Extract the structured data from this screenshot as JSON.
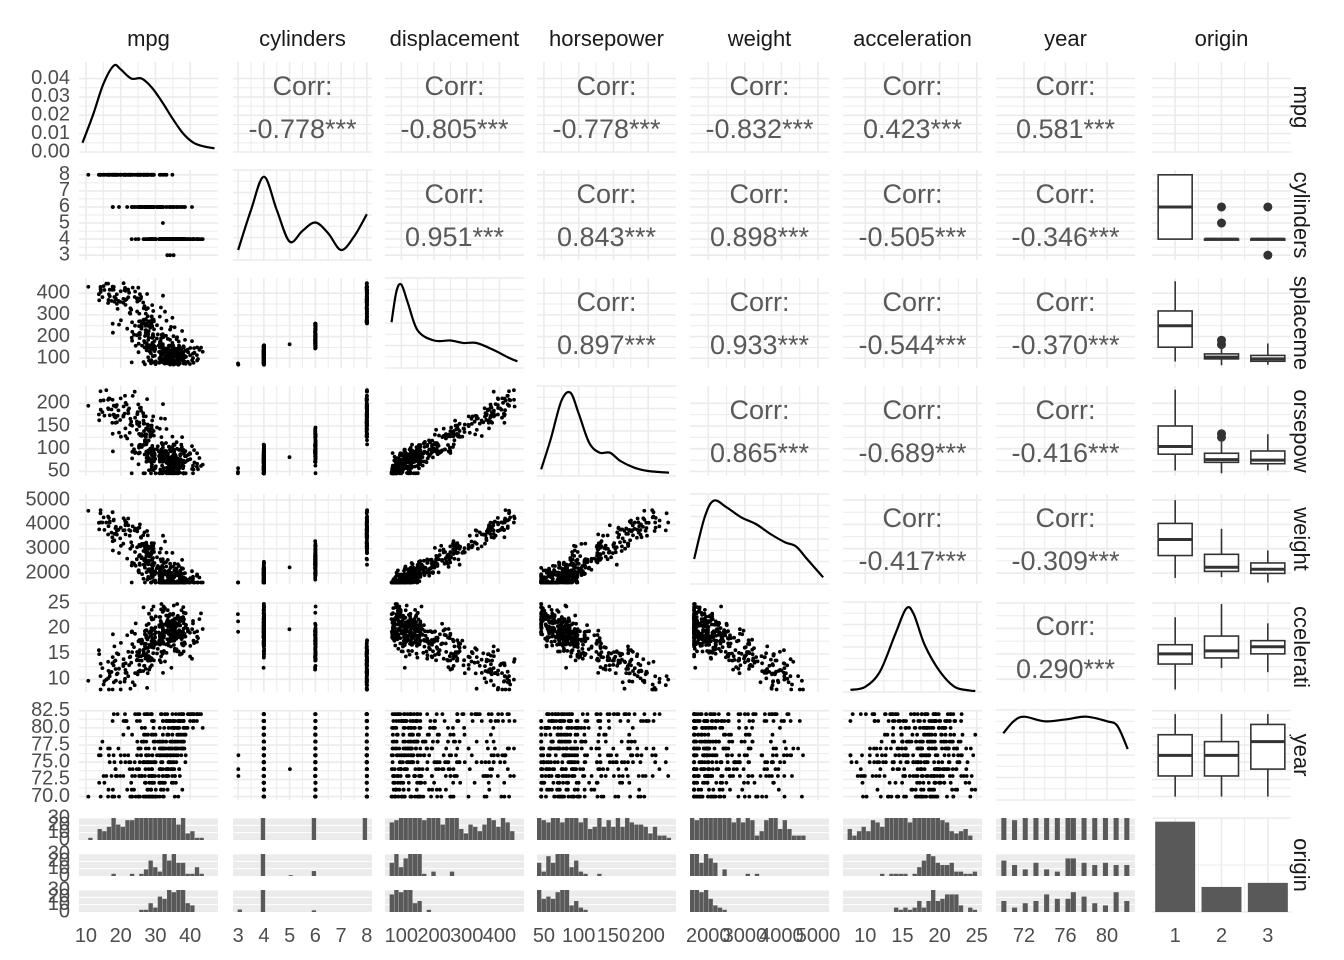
{
  "chart_data": {
    "type": "scatter-matrix",
    "variables": [
      "mpg",
      "cylinders",
      "displacement",
      "horsepower",
      "weight",
      "acceleration",
      "year",
      "origin"
    ],
    "row_strip_labels": [
      "mpg",
      "cylinders",
      "splaceme",
      "orsepow",
      "weight",
      "ccelerati",
      "year",
      "origin"
    ],
    "corr_label": "Corr:",
    "correlations": [
      {
        "row": 0,
        "col": 1,
        "value": "-0.778***"
      },
      {
        "row": 0,
        "col": 2,
        "value": "-0.805***"
      },
      {
        "row": 0,
        "col": 3,
        "value": "-0.778***"
      },
      {
        "row": 0,
        "col": 4,
        "value": "-0.832***"
      },
      {
        "row": 0,
        "col": 5,
        "value": "0.423***"
      },
      {
        "row": 0,
        "col": 6,
        "value": "0.581***"
      },
      {
        "row": 1,
        "col": 2,
        "value": "0.951***"
      },
      {
        "row": 1,
        "col": 3,
        "value": "0.843***"
      },
      {
        "row": 1,
        "col": 4,
        "value": "0.898***"
      },
      {
        "row": 1,
        "col": 5,
        "value": "-0.505***"
      },
      {
        "row": 1,
        "col": 6,
        "value": "-0.346***"
      },
      {
        "row": 2,
        "col": 3,
        "value": "0.897***"
      },
      {
        "row": 2,
        "col": 4,
        "value": "0.933***"
      },
      {
        "row": 2,
        "col": 5,
        "value": "-0.544***"
      },
      {
        "row": 2,
        "col": 6,
        "value": "-0.370***"
      },
      {
        "row": 3,
        "col": 4,
        "value": "0.865***"
      },
      {
        "row": 3,
        "col": 5,
        "value": "-0.689***"
      },
      {
        "row": 3,
        "col": 6,
        "value": "-0.416***"
      },
      {
        "row": 4,
        "col": 5,
        "value": "-0.417***"
      },
      {
        "row": 4,
        "col": 6,
        "value": "-0.309***"
      },
      {
        "row": 5,
        "col": 6,
        "value": "0.290***"
      }
    ],
    "x_axes": [
      {
        "var": "mpg",
        "range": [
          8,
          48
        ],
        "ticks": [
          "10",
          "20",
          "30",
          "40"
        ],
        "tick_values": [
          10,
          20,
          30,
          40
        ]
      },
      {
        "var": "cylinders",
        "range": [
          2.8,
          8.2
        ],
        "ticks": [
          "3",
          "4",
          "5",
          "6",
          "7",
          "8"
        ],
        "tick_values": [
          3,
          4,
          5,
          6,
          7,
          8
        ]
      },
      {
        "var": "displacement",
        "range": [
          50,
          475
        ],
        "ticks": [
          "100",
          "200",
          "300",
          "400"
        ],
        "tick_values": [
          100,
          200,
          300,
          400
        ]
      },
      {
        "var": "horsepower",
        "range": [
          40,
          240
        ],
        "ticks": [
          "50",
          "100",
          "150",
          "200"
        ],
        "tick_values": [
          50,
          100,
          150,
          200
        ]
      },
      {
        "var": "weight",
        "range": [
          1500,
          5300
        ],
        "ticks": [
          "2000",
          "3000",
          "4000",
          "5000"
        ],
        "tick_values": [
          2000,
          3000,
          4000,
          5000
        ]
      },
      {
        "var": "acceleration",
        "range": [
          7,
          25.7
        ],
        "ticks": [
          "10",
          "15",
          "20",
          "25"
        ],
        "tick_values": [
          10,
          15,
          20,
          25
        ]
      },
      {
        "var": "year",
        "range": [
          69.3,
          82.7
        ],
        "ticks": [
          "72",
          "76",
          "80"
        ],
        "tick_values": [
          72,
          76,
          80
        ]
      },
      {
        "var": "origin",
        "range": [
          0.5,
          3.5
        ],
        "ticks": [
          "1",
          "2",
          "3"
        ],
        "tick_values": [
          1,
          2,
          3
        ]
      }
    ],
    "y_axes": [
      {
        "var": "mpg",
        "range": [
          0,
          0.049
        ],
        "ticks": [
          "0.00",
          "0.01",
          "0.02",
          "0.03",
          "0.04"
        ],
        "tick_values": [
          0,
          0.01,
          0.02,
          0.03,
          0.04
        ]
      },
      {
        "var": "cylinders",
        "range": [
          2.7,
          8.3
        ],
        "ticks": [
          "3",
          "4",
          "5",
          "6",
          "7",
          "8"
        ],
        "tick_values": [
          3,
          4,
          5,
          6,
          7,
          8
        ]
      },
      {
        "var": "displacement",
        "range": [
          55,
          470
        ],
        "ticks": [
          "100",
          "200",
          "300",
          "400"
        ],
        "tick_values": [
          100,
          200,
          300,
          400
        ]
      },
      {
        "var": "horsepower",
        "range": [
          40,
          238
        ],
        "ticks": [
          "50",
          "100",
          "150",
          "200"
        ],
        "tick_values": [
          50,
          100,
          150,
          200
        ]
      },
      {
        "var": "weight",
        "range": [
          1550,
          5250
        ],
        "ticks": [
          "2000",
          "3000",
          "4000",
          "5000"
        ],
        "tick_values": [
          2000,
          3000,
          4000,
          5000
        ]
      },
      {
        "var": "acceleration",
        "range": [
          7.5,
          25.2
        ],
        "ticks": [
          "10",
          "15",
          "20",
          "25"
        ],
        "tick_values": [
          10,
          15,
          20,
          25
        ]
      },
      {
        "var": "year",
        "range": [
          69.5,
          82.6
        ],
        "ticks": [
          "70.0",
          "72.5",
          "75.0",
          "77.5",
          "80.0",
          "82.5"
        ],
        "tick_values": [
          70,
          72.5,
          75,
          77.5,
          80,
          82.5
        ]
      },
      {
        "var": "origin",
        "ticks": [
          "0",
          "10",
          "20",
          "30"
        ]
      }
    ],
    "diagonal_densities": [
      {
        "var": "mpg",
        "points": [
          [
            9,
            0.005
          ],
          [
            12,
            0.02
          ],
          [
            15,
            0.037
          ],
          [
            18,
            0.047
          ],
          [
            20,
            0.045
          ],
          [
            23,
            0.04
          ],
          [
            26,
            0.04
          ],
          [
            29,
            0.035
          ],
          [
            32,
            0.027
          ],
          [
            35,
            0.018
          ],
          [
            38,
            0.01
          ],
          [
            41,
            0.005
          ],
          [
            44,
            0.003
          ],
          [
            47,
            0.002
          ]
        ]
      },
      {
        "var": "cylinders",
        "points": [
          [
            3,
            0.12
          ],
          [
            3.5,
            0.6
          ],
          [
            4,
            1.0
          ],
          [
            4.5,
            0.6
          ],
          [
            5,
            0.22
          ],
          [
            5.5,
            0.35
          ],
          [
            6,
            0.45
          ],
          [
            6.5,
            0.32
          ],
          [
            7,
            0.12
          ],
          [
            7.5,
            0.28
          ],
          [
            8,
            0.55
          ]
        ]
      },
      {
        "var": "displacement",
        "points": [
          [
            70,
            0.55
          ],
          [
            85,
            0.92
          ],
          [
            100,
            1.0
          ],
          [
            120,
            0.78
          ],
          [
            150,
            0.45
          ],
          [
            200,
            0.33
          ],
          [
            250,
            0.33
          ],
          [
            290,
            0.3
          ],
          [
            330,
            0.3
          ],
          [
            380,
            0.22
          ],
          [
            430,
            0.12
          ],
          [
            455,
            0.08
          ]
        ]
      },
      {
        "var": "horsepower",
        "points": [
          [
            46,
            0.08
          ],
          [
            60,
            0.45
          ],
          [
            75,
            0.9
          ],
          [
            88,
            1.0
          ],
          [
            100,
            0.75
          ],
          [
            115,
            0.4
          ],
          [
            130,
            0.28
          ],
          [
            145,
            0.28
          ],
          [
            160,
            0.18
          ],
          [
            180,
            0.1
          ],
          [
            200,
            0.06
          ],
          [
            230,
            0.04
          ]
        ]
      },
      {
        "var": "weight",
        "points": [
          [
            1613,
            0.3
          ],
          [
            1900,
            0.8
          ],
          [
            2150,
            1.0
          ],
          [
            2500,
            0.92
          ],
          [
            2900,
            0.8
          ],
          [
            3300,
            0.72
          ],
          [
            3700,
            0.6
          ],
          [
            4100,
            0.5
          ],
          [
            4400,
            0.45
          ],
          [
            4700,
            0.3
          ],
          [
            5140,
            0.08
          ]
        ]
      },
      {
        "var": "acceleration",
        "points": [
          [
            8,
            0.02
          ],
          [
            10,
            0.05
          ],
          [
            12,
            0.2
          ],
          [
            14,
            0.55
          ],
          [
            15.5,
            0.8
          ],
          [
            16.5,
            0.75
          ],
          [
            18,
            0.45
          ],
          [
            20,
            0.2
          ],
          [
            22,
            0.05
          ],
          [
            24,
            0.015
          ],
          [
            24.8,
            0.01
          ]
        ]
      },
      {
        "var": "year",
        "points": [
          [
            70,
            0.72
          ],
          [
            71,
            0.85
          ],
          [
            72,
            0.9
          ],
          [
            74,
            0.85
          ],
          [
            76,
            0.87
          ],
          [
            78,
            0.9
          ],
          [
            80,
            0.85
          ],
          [
            81,
            0.8
          ],
          [
            82,
            0.55
          ]
        ]
      }
    ],
    "origin_boxplots": [
      {
        "var": "mpg",
        "boxes": [
          {
            "origin": 1,
            "min": 9,
            "q1": 15,
            "median": 18.5,
            "q3": 24,
            "max": 36,
            "outliers": [
              38,
              39
            ]
          },
          {
            "origin": 2,
            "min": 16,
            "q1": 24,
            "median": 26.5,
            "q3": 30.5,
            "max": 41,
            "outliers": [
              43,
              44,
              44.5
            ]
          },
          {
            "origin": 3,
            "min": 18,
            "q1": 27,
            "median": 31.5,
            "q3": 34,
            "max": 44.5,
            "outliers": [
              46.6
            ]
          }
        ]
      },
      {
        "var": "cylinders",
        "boxes": [
          {
            "origin": 1,
            "min": 4,
            "q1": 4,
            "median": 6,
            "q3": 8,
            "max": 8,
            "outliers": []
          },
          {
            "origin": 2,
            "min": 4,
            "q1": 4,
            "median": 4,
            "q3": 4,
            "max": 4,
            "outliers": [
              5,
              6
            ]
          },
          {
            "origin": 3,
            "min": 4,
            "q1": 4,
            "median": 4,
            "q3": 4,
            "max": 4,
            "outliers": [
              3,
              6
            ]
          }
        ]
      },
      {
        "var": "displacement",
        "boxes": [
          {
            "origin": 1,
            "min": 85,
            "q1": 151,
            "median": 250,
            "q3": 318,
            "max": 455,
            "outliers": []
          },
          {
            "origin": 2,
            "min": 68,
            "q1": 97,
            "median": 105,
            "q3": 120,
            "max": 150,
            "outliers": [
              163,
              183
            ]
          },
          {
            "origin": 3,
            "min": 70,
            "q1": 86,
            "median": 97,
            "q3": 113,
            "max": 168,
            "outliers": []
          }
        ]
      },
      {
        "var": "horsepower",
        "boxes": [
          {
            "origin": 1,
            "min": 52,
            "q1": 88,
            "median": 105,
            "q3": 150,
            "max": 230,
            "outliers": []
          },
          {
            "origin": 2,
            "min": 46,
            "q1": 70,
            "median": 76,
            "q3": 90,
            "max": 115,
            "outliers": [
              125,
              133
            ]
          },
          {
            "origin": 3,
            "min": 52,
            "q1": 67,
            "median": 75,
            "q3": 95,
            "max": 132,
            "outliers": []
          }
        ]
      },
      {
        "var": "weight",
        "boxes": [
          {
            "origin": 1,
            "min": 1800,
            "q1": 2720,
            "median": 3380,
            "q3": 4040,
            "max": 4997,
            "outliers": []
          },
          {
            "origin": 2,
            "min": 1835,
            "q1": 2070,
            "median": 2240,
            "q3": 2770,
            "max": 3820,
            "outliers": []
          },
          {
            "origin": 3,
            "min": 1613,
            "q1": 1985,
            "median": 2155,
            "q3": 2415,
            "max": 2930,
            "outliers": []
          }
        ]
      },
      {
        "var": "acceleration",
        "boxes": [
          {
            "origin": 1,
            "min": 8,
            "q1": 13,
            "median": 15,
            "q3": 16.8,
            "max": 22.2,
            "outliers": []
          },
          {
            "origin": 2,
            "min": 12.2,
            "q1": 14.2,
            "median": 15.6,
            "q3": 18.5,
            "max": 24.8,
            "outliers": []
          },
          {
            "origin": 3,
            "min": 11.4,
            "q1": 15,
            "median": 16.4,
            "q3": 17.6,
            "max": 21,
            "outliers": []
          }
        ]
      },
      {
        "var": "year",
        "boxes": [
          {
            "origin": 1,
            "min": 70,
            "q1": 73,
            "median": 76,
            "q3": 79,
            "max": 82,
            "outliers": []
          },
          {
            "origin": 2,
            "min": 70,
            "q1": 73,
            "median": 76,
            "q3": 78,
            "max": 82,
            "outliers": []
          },
          {
            "origin": 3,
            "min": 70,
            "q1": 74,
            "median": 78,
            "q3": 80.5,
            "max": 82,
            "outliers": []
          }
        ]
      }
    ],
    "origin_counts": [
      {
        "origin": 1,
        "count": 245
      },
      {
        "origin": 2,
        "count": 68
      },
      {
        "origin": 3,
        "count": 79
      }
    ],
    "origin_counts_range": [
      0,
      255
    ],
    "grid": true,
    "colors": {
      "points": "#000000",
      "bars": "#595959",
      "grid": "#ebebeb",
      "corr_text": "#595959",
      "axis_text": "#4d4d4d",
      "strip_text": "#1a1a1a",
      "box_fill": "#ffffff",
      "box_stroke": "#333333"
    }
  }
}
